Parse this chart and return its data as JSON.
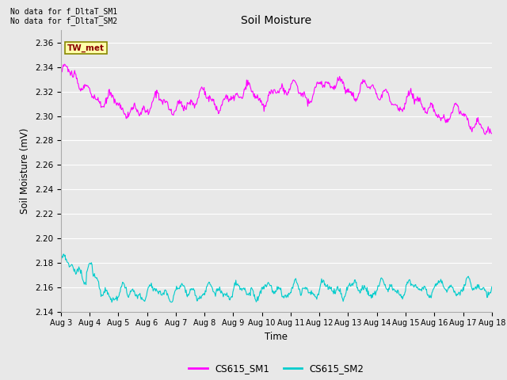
{
  "title": "Soil Moisture",
  "xlabel": "Time",
  "ylabel": "Soil Moisture (mV)",
  "ylim": [
    2.14,
    2.37
  ],
  "yticks": [
    2.14,
    2.16,
    2.18,
    2.2,
    2.22,
    2.24,
    2.26,
    2.28,
    2.3,
    2.32,
    2.34,
    2.36
  ],
  "color_sm1": "#ff00ff",
  "color_sm2": "#00cccc",
  "legend_labels": [
    "CS615_SM1",
    "CS615_SM2"
  ],
  "no_data_text1": "No data for f_DltaT_SM1",
  "no_data_text2": "No data for f_DltaT_SM2",
  "tw_met_label": "TW_met",
  "bg_color": "#e8e8e8",
  "plot_bg_color": "#e8e8e8",
  "grid_color": "#ffffff",
  "xticklabels": [
    "Aug 3",
    "Aug 4",
    "Aug 5",
    "Aug 6",
    "Aug 7",
    "Aug 8",
    "Aug 9",
    "Aug 10",
    "Aug 11",
    "Aug 12",
    "Aug 13",
    "Aug 14",
    "Aug 15",
    "Aug 16",
    "Aug 17",
    "Aug 18"
  ],
  "n_points": 720
}
